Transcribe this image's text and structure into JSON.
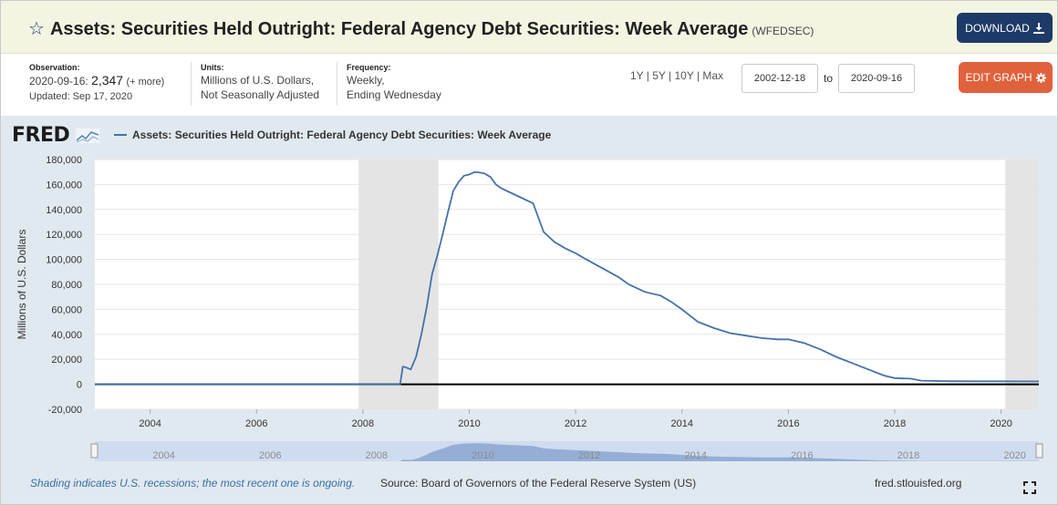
{
  "header": {
    "title": "Assets: Securities Held Outright: Federal Agency Debt Securities: Week Average",
    "series_id": "(WFEDSEC)",
    "download_label": "DOWNLOAD"
  },
  "info": {
    "observation_label": "Observation:",
    "observation_date": "2020-09-16:",
    "observation_value": "2,347",
    "observation_more": "(+ more)",
    "updated": "Updated: Sep 17, 2020",
    "units_label": "Units:",
    "units_line1": "Millions of U.S. Dollars,",
    "units_line2": "Not Seasonally Adjusted",
    "frequency_label": "Frequency:",
    "frequency_line1": "Weekly,",
    "frequency_line2": "Ending Wednesday",
    "ranges": "1Y | 5Y | 10Y | Max",
    "date_from": "2002-12-18",
    "to_label": "to",
    "date_to": "2020-09-16",
    "edit_label": "EDIT GRAPH"
  },
  "footer": {
    "recession_note": "Shading indicates U.S. recessions; the most recent one is ongoing.",
    "source": "Source: Board of Governors of the Federal Reserve System (US)",
    "site": "fred.stlouisfed.org"
  },
  "brand": {
    "logo": "FRED"
  },
  "colors": {
    "series": "#4572a7",
    "header_bg": "#f4f4e2",
    "download": "#1e3a66",
    "edit": "#e0623c",
    "recession": "#e3e3e3",
    "chart_bg": "#e1e9f0"
  },
  "chart_data": {
    "type": "line",
    "title": "",
    "legend": "Assets: Securities Held Outright: Federal Agency Debt Securities: Week Average",
    "xlabel": "",
    "ylabel": "Millions of U.S. Dollars",
    "xlim": [
      2002.96,
      2020.71
    ],
    "ylim": [
      -20000,
      180000
    ],
    "y_ticks": [
      -20000,
      0,
      20000,
      40000,
      60000,
      80000,
      100000,
      120000,
      140000,
      160000,
      180000
    ],
    "y_tick_labels": [
      "-20,000",
      "0",
      "20,000",
      "40,000",
      "60,000",
      "80,000",
      "100,000",
      "120,000",
      "140,000",
      "160,000",
      "180,000"
    ],
    "x_ticks": [
      2004,
      2006,
      2008,
      2010,
      2012,
      2014,
      2016,
      2018,
      2020
    ],
    "x_tick_labels": [
      "2004",
      "2006",
      "2008",
      "2010",
      "2012",
      "2014",
      "2016",
      "2018",
      "2020"
    ],
    "recessions": [
      [
        2007.92,
        2009.42
      ],
      [
        2020.08,
        2020.71
      ]
    ],
    "grid": true,
    "series": [
      {
        "name": "Assets: Securities Held Outright: Federal Agency Debt Securities: Week Average",
        "x": [
          2002.96,
          2008.7,
          2008.75,
          2008.78,
          2008.9,
          2009.0,
          2009.1,
          2009.2,
          2009.3,
          2009.4,
          2009.5,
          2009.6,
          2009.7,
          2009.8,
          2009.9,
          2010.0,
          2010.1,
          2010.2,
          2010.28,
          2010.4,
          2010.5,
          2010.6,
          2010.8,
          2011.0,
          2011.2,
          2011.4,
          2011.6,
          2011.8,
          2012.0,
          2012.2,
          2012.5,
          2012.8,
          2013.0,
          2013.3,
          2013.6,
          2013.8,
          2014.0,
          2014.3,
          2014.6,
          2014.9,
          2015.2,
          2015.5,
          2015.8,
          2016.0,
          2016.3,
          2016.6,
          2016.9,
          2017.2,
          2017.5,
          2017.8,
          2018.0,
          2018.3,
          2018.5,
          2019.0,
          2019.5,
          2020.0,
          2020.5,
          2020.71
        ],
        "y": [
          0,
          0,
          14000,
          14000,
          12000,
          22000,
          40000,
          62000,
          88000,
          103000,
          120000,
          138000,
          155000,
          162000,
          167000,
          168000,
          170000,
          169500,
          169000,
          166000,
          160000,
          157000,
          153000,
          149000,
          145000,
          122000,
          114000,
          109000,
          105000,
          100000,
          93000,
          86000,
          80000,
          74000,
          71000,
          66000,
          60000,
          50000,
          45000,
          41000,
          39000,
          37000,
          36000,
          36000,
          33000,
          28000,
          22000,
          17000,
          12000,
          7000,
          5000,
          4500,
          2900,
          2500,
          2400,
          2400,
          2347,
          2347
        ]
      }
    ],
    "navigator_labels": [
      "2004",
      "2006",
      "2008",
      "2010",
      "2012",
      "2014",
      "2016",
      "2018",
      "2020"
    ]
  }
}
